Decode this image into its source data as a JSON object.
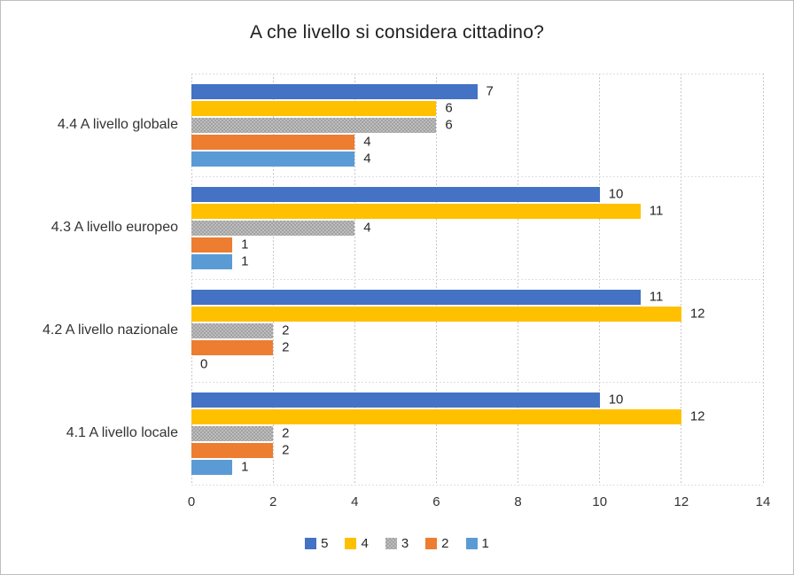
{
  "chart_data": {
    "type": "bar",
    "orientation": "horizontal",
    "title": "A che livello si considera cittadino?",
    "categories": [
      "4.4 A livello globale",
      "4.3 A livello europeo",
      "4.2 A livello nazionale",
      "4.1 A livello locale"
    ],
    "series": [
      {
        "name": "5",
        "color": "#4472C4",
        "values": [
          7,
          10,
          11,
          10
        ]
      },
      {
        "name": "4",
        "color": "#FFC000",
        "values": [
          6,
          11,
          12,
          12
        ]
      },
      {
        "name": "3",
        "color": "#A5A5A5",
        "pattern": "checker",
        "values": [
          6,
          4,
          2,
          2
        ]
      },
      {
        "name": "2",
        "color": "#ED7D31",
        "values": [
          4,
          1,
          2,
          2
        ]
      },
      {
        "name": "1",
        "color": "#5B9BD5",
        "values": [
          4,
          1,
          0,
          1
        ]
      }
    ],
    "x_ticks": [
      0,
      2,
      4,
      6,
      8,
      10,
      12,
      14
    ],
    "xlim": [
      0,
      14
    ],
    "grid": "vertical-dotted",
    "legend_position": "bottom",
    "legend": [
      "5",
      "4",
      "3",
      "2",
      "1"
    ]
  }
}
